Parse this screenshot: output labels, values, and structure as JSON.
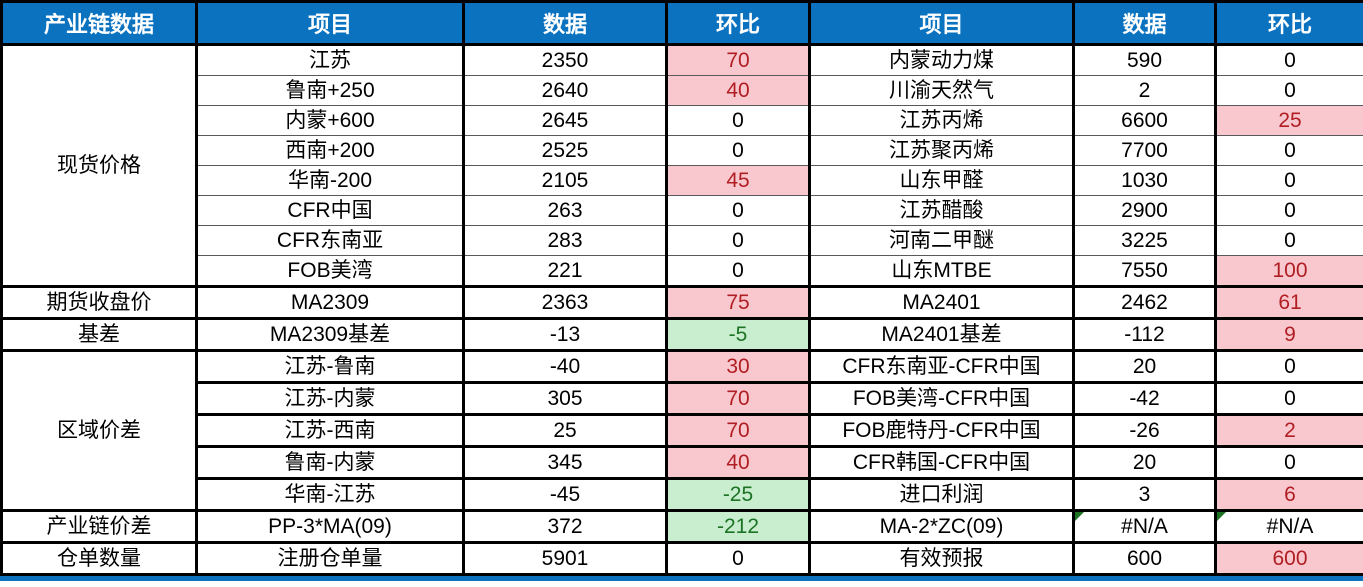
{
  "chart_data": {
    "type": "table",
    "title": "产业链数据",
    "columns": [
      "产业链数据",
      "项目",
      "数据",
      "环比",
      "项目",
      "数据",
      "环比"
    ],
    "groups": [
      {
        "category": "现货价格",
        "separator": "thin",
        "rows": [
          {
            "left": {
              "item": "江苏",
              "value": "2350",
              "change": "70",
              "state": "up"
            },
            "right": {
              "item": "内蒙动力煤",
              "value": "590",
              "change": "0",
              "state": "none"
            }
          },
          {
            "left": {
              "item": "鲁南+250",
              "value": "2640",
              "change": "40",
              "state": "up"
            },
            "right": {
              "item": "川渝天然气",
              "value": "2",
              "change": "0",
              "state": "none"
            }
          },
          {
            "left": {
              "item": "内蒙+600",
              "value": "2645",
              "change": "0",
              "state": "none"
            },
            "right": {
              "item": "江苏丙烯",
              "value": "6600",
              "change": "25",
              "state": "up"
            }
          },
          {
            "left": {
              "item": "西南+200",
              "value": "2525",
              "change": "0",
              "state": "none"
            },
            "right": {
              "item": "江苏聚丙烯",
              "value": "7700",
              "change": "0",
              "state": "none"
            }
          },
          {
            "left": {
              "item": "华南-200",
              "value": "2105",
              "change": "45",
              "state": "up"
            },
            "right": {
              "item": "山东甲醛",
              "value": "1030",
              "change": "0",
              "state": "none"
            }
          },
          {
            "left": {
              "item": "CFR中国",
              "value": "263",
              "change": "0",
              "state": "none"
            },
            "right": {
              "item": "江苏醋酸",
              "value": "2900",
              "change": "0",
              "state": "none"
            }
          },
          {
            "left": {
              "item": "CFR东南亚",
              "value": "283",
              "change": "0",
              "state": "none"
            },
            "right": {
              "item": "河南二甲醚",
              "value": "3225",
              "change": "0",
              "state": "none"
            }
          },
          {
            "left": {
              "item": "FOB美湾",
              "value": "221",
              "change": "0",
              "state": "none"
            },
            "right": {
              "item": "山东MTBE",
              "value": "7550",
              "change": "100",
              "state": "up"
            }
          }
        ]
      },
      {
        "category": "期货收盘价",
        "separator": "thick",
        "rows": [
          {
            "left": {
              "item": "MA2309",
              "value": "2363",
              "change": "75",
              "state": "up"
            },
            "right": {
              "item": "MA2401",
              "value": "2462",
              "change": "61",
              "state": "up"
            }
          }
        ]
      },
      {
        "category": "基差",
        "separator": "thick",
        "rows": [
          {
            "left": {
              "item": "MA2309基差",
              "value": "-13",
              "change": "-5",
              "state": "down"
            },
            "right": {
              "item": "MA2401基差",
              "value": "-112",
              "change": "9",
              "state": "up"
            }
          }
        ]
      },
      {
        "category": "区域价差",
        "separator": "thick",
        "rows": [
          {
            "left": {
              "item": "江苏-鲁南",
              "value": "-40",
              "change": "30",
              "state": "up"
            },
            "right": {
              "item": "CFR东南亚-CFR中国",
              "value": "20",
              "change": "0",
              "state": "none"
            }
          },
          {
            "left": {
              "item": "江苏-内蒙",
              "value": "305",
              "change": "70",
              "state": "up"
            },
            "right": {
              "item": "FOB美湾-CFR中国",
              "value": "-42",
              "change": "0",
              "state": "none"
            }
          },
          {
            "left": {
              "item": "江苏-西南",
              "value": "25",
              "change": "70",
              "state": "up"
            },
            "right": {
              "item": "FOB鹿特丹-CFR中国",
              "value": "-26",
              "change": "2",
              "state": "up"
            }
          },
          {
            "left": {
              "item": "鲁南-内蒙",
              "value": "345",
              "change": "40",
              "state": "up"
            },
            "right": {
              "item": "CFR韩国-CFR中国",
              "value": "20",
              "change": "0",
              "state": "none"
            }
          },
          {
            "left": {
              "item": "华南-江苏",
              "value": "-45",
              "change": "-25",
              "state": "down"
            },
            "right": {
              "item": "进口利润",
              "value": "3",
              "change": "6",
              "state": "up"
            }
          }
        ]
      },
      {
        "category": "产业链价差",
        "separator": "thick",
        "rows": [
          {
            "left": {
              "item": "PP-3*MA(09)",
              "value": "372",
              "change": "-212",
              "state": "down"
            },
            "right": {
              "item": "MA-2*ZC(09)",
              "value": "#N/A",
              "value_flag": true,
              "change": "#N/A",
              "change_flag": true,
              "state": "none"
            }
          }
        ]
      },
      {
        "category": "仓单数量",
        "separator": "thick",
        "rows": [
          {
            "left": {
              "item": "注册仓单量",
              "value": "5901",
              "change": "0",
              "state": "none"
            },
            "right": {
              "item": "有效预报",
              "value": "600",
              "change": "600",
              "state": "up"
            }
          }
        ]
      }
    ]
  },
  "colors": {
    "header_bg": "#0b72c0",
    "header_text": "#ffffff",
    "increase_bg": "#f8c8ce",
    "increase_text": "#b01e23",
    "decrease_bg": "#c9edcf",
    "decrease_text": "#1d7324",
    "na_flag": "#1d7324",
    "bottom_strip": "#0b72c0"
  }
}
